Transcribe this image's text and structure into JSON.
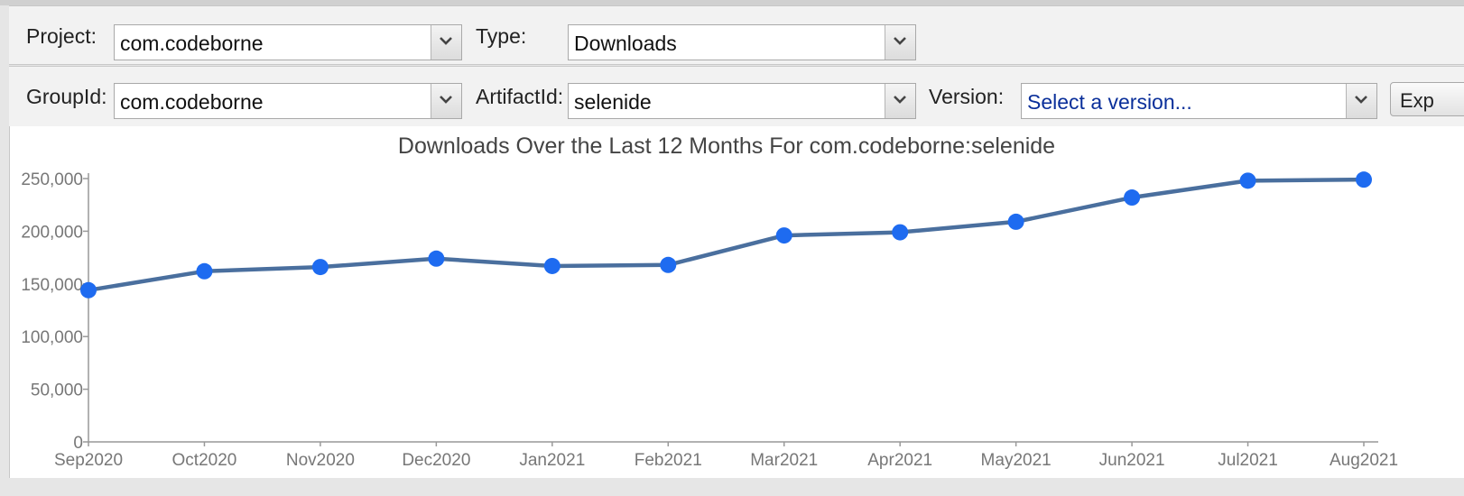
{
  "toolbar_top": {
    "project_label": "Project:",
    "project_value": "com.codeborne",
    "type_label": "Type:",
    "type_value": "Downloads"
  },
  "toolbar_bottom": {
    "groupid_label": "GroupId:",
    "groupid_value": "com.codeborne",
    "artifactid_label": "ArtifactId:",
    "artifactid_value": "selenide",
    "version_label": "Version:",
    "version_placeholder": "Select a version...",
    "export_label": "Exp"
  },
  "icons": {
    "dropdown": "chevron-down-icon"
  },
  "colors": {
    "line": "#4a6f9e",
    "marker": "#1e6bf0",
    "placeholder_text": "#0a2f9a"
  },
  "chart_data": {
    "type": "line",
    "title": "Downloads Over the Last 12 Months For com.codeborne:selenide",
    "categories": [
      "Sep2020",
      "Oct2020",
      "Nov2020",
      "Dec2020",
      "Jan2021",
      "Feb2021",
      "Mar2021",
      "Apr2021",
      "May2021",
      "Jun2021",
      "Jul2021",
      "Aug2021"
    ],
    "series": [
      {
        "values": [
          144000,
          162000,
          166000,
          174000,
          167000,
          168000,
          196000,
          199000,
          209000,
          232000,
          248000,
          249000
        ]
      }
    ],
    "ylim": [
      0,
      250000
    ],
    "yticks": [
      0,
      50000,
      100000,
      150000,
      200000,
      250000
    ],
    "ytick_labels": [
      "0",
      "50,000",
      "100,000",
      "150,000",
      "200,000",
      "250,000"
    ],
    "grid": false,
    "legend": "none"
  }
}
